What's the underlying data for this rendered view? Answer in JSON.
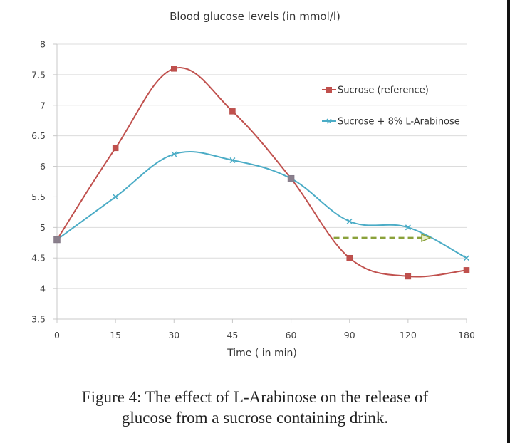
{
  "chart_data": {
    "type": "line",
    "title": "Blood glucose levels (in mmol/l)",
    "xlabel": "Time ( in min)",
    "ylabel": "",
    "categories": [
      "0",
      "15",
      "30",
      "45",
      "60",
      "90",
      "120",
      "180"
    ],
    "ylim": [
      3.5,
      8
    ],
    "yticks": [
      "3.5",
      "4",
      "4.5",
      "5",
      "5.5",
      "6",
      "6.5",
      "7",
      "7.5",
      "8"
    ],
    "grid": true,
    "legend_position": "top-right",
    "smooth": true,
    "series": [
      {
        "name": "Sucrose (reference)",
        "color": "#c0504d",
        "marker": "square",
        "values": [
          4.8,
          6.3,
          7.6,
          6.9,
          5.8,
          4.5,
          4.2,
          4.3
        ]
      },
      {
        "name": "Sucrose + 8% L-Arabinose",
        "color": "#4bacc6",
        "marker": "x",
        "values": [
          4.8,
          5.5,
          6.2,
          6.1,
          5.8,
          5.1,
          5.0,
          4.5
        ]
      }
    ],
    "annotations": [
      {
        "type": "dashed-arrow",
        "color": "#8aa13a",
        "y": 4.83,
        "x_from_category": 4.73,
        "x_to_category": 6.38
      }
    ]
  },
  "caption": {
    "line1": "Figure 4: The effect of L-Arabinose on the release of",
    "line2": "glucose from a sucrose containing drink."
  }
}
